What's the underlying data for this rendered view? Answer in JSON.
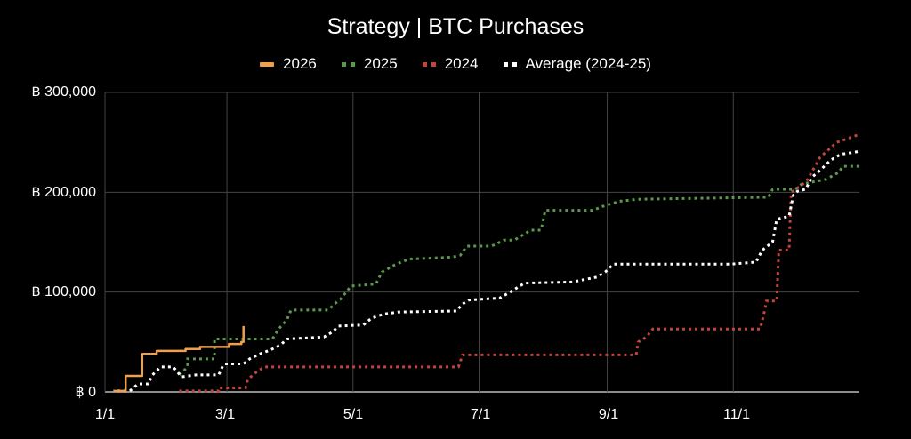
{
  "chart_data": {
    "type": "line",
    "title": "Strategy | BTC Purchases",
    "xlabel": "",
    "ylabel": "",
    "ylim": [
      0,
      300000
    ],
    "xlim_days": [
      0,
      365
    ],
    "grid": true,
    "legend_position": "top",
    "y_ticks": [
      {
        "value": 0,
        "label": "฿ 0"
      },
      {
        "value": 100000,
        "label": "฿ 100,000"
      },
      {
        "value": 200000,
        "label": "฿ 200,000"
      },
      {
        "value": 300000,
        "label": "฿ 300,000"
      }
    ],
    "x_ticks": [
      {
        "day": 0,
        "label": "1/1"
      },
      {
        "day": 59,
        "label": "3/1"
      },
      {
        "day": 120,
        "label": "5/1"
      },
      {
        "day": 181,
        "label": "7/1"
      },
      {
        "day": 243,
        "label": "9/1"
      },
      {
        "day": 304,
        "label": "11/1"
      }
    ],
    "series": [
      {
        "name": "2026",
        "color": "#f0a04b",
        "style": "solid",
        "points": [
          [
            4,
            1000
          ],
          [
            10,
            1000
          ],
          [
            10,
            16000
          ],
          [
            18,
            16000
          ],
          [
            18,
            38000
          ],
          [
            25,
            38000
          ],
          [
            25,
            41000
          ],
          [
            39,
            41000
          ],
          [
            39,
            43000
          ],
          [
            46,
            43000
          ],
          [
            46,
            45000
          ],
          [
            60,
            45000
          ],
          [
            60,
            48000
          ],
          [
            66,
            48000
          ],
          [
            66,
            50000
          ],
          [
            67,
            50000
          ],
          [
            67,
            66000
          ]
        ]
      },
      {
        "name": "2025",
        "color": "#5a9a4a",
        "style": "dotted",
        "points": [
          [
            36,
            17000
          ],
          [
            40,
            25000
          ],
          [
            40,
            33000
          ],
          [
            53,
            33000
          ],
          [
            53,
            53000
          ],
          [
            81,
            53000
          ],
          [
            84,
            63000
          ],
          [
            88,
            72000
          ],
          [
            90,
            82000
          ],
          [
            108,
            82000
          ],
          [
            111,
            88000
          ],
          [
            114,
            93000
          ],
          [
            119,
            106000
          ],
          [
            131,
            108000
          ],
          [
            134,
            120000
          ],
          [
            140,
            127000
          ],
          [
            147,
            133000
          ],
          [
            168,
            135000
          ],
          [
            172,
            137000
          ],
          [
            175,
            146000
          ],
          [
            187,
            146000
          ],
          [
            193,
            152000
          ],
          [
            198,
            152000
          ],
          [
            202,
            157000
          ],
          [
            206,
            162000
          ],
          [
            211,
            162000
          ],
          [
            213,
            182000
          ],
          [
            236,
            182000
          ],
          [
            241,
            186000
          ],
          [
            249,
            191000
          ],
          [
            258,
            193000
          ],
          [
            321,
            195000
          ],
          [
            323,
            203000
          ],
          [
            334,
            203000
          ],
          [
            337,
            208000
          ],
          [
            349,
            213000
          ],
          [
            355,
            220000
          ],
          [
            357,
            226000
          ],
          [
            365,
            226000
          ]
        ]
      },
      {
        "name": "2024",
        "color": "#c0453a",
        "style": "dotted",
        "points": [
          [
            36,
            1000
          ],
          [
            55,
            1000
          ],
          [
            55,
            4000
          ],
          [
            68,
            4000
          ],
          [
            69,
            12000
          ],
          [
            72,
            18000
          ],
          [
            77,
            25000
          ],
          [
            171,
            25000
          ],
          [
            173,
            37000
          ],
          [
            257,
            37000
          ],
          [
            258,
            50000
          ],
          [
            262,
            55000
          ],
          [
            265,
            63000
          ],
          [
            317,
            63000
          ],
          [
            319,
            80000
          ],
          [
            320,
            91000
          ],
          [
            325,
            91000
          ],
          [
            326,
            142000
          ],
          [
            331,
            142000
          ],
          [
            332,
            200000
          ],
          [
            337,
            207000
          ],
          [
            340,
            213000
          ],
          [
            346,
            235000
          ],
          [
            354,
            250000
          ],
          [
            361,
            255000
          ],
          [
            365,
            258000
          ]
        ]
      },
      {
        "name": "Average (2024-25)",
        "color": "#ffffff",
        "style": "dotted",
        "points": [
          [
            6,
            1000
          ],
          [
            12,
            1000
          ],
          [
            16,
            8000
          ],
          [
            21,
            8000
          ],
          [
            23,
            17000
          ],
          [
            27,
            25000
          ],
          [
            33,
            25000
          ],
          [
            37,
            15000
          ],
          [
            44,
            17000
          ],
          [
            55,
            17000
          ],
          [
            57,
            26000
          ],
          [
            58,
            28000
          ],
          [
            67,
            28000
          ],
          [
            70,
            33000
          ],
          [
            75,
            38000
          ],
          [
            80,
            42000
          ],
          [
            85,
            47000
          ],
          [
            88,
            53000
          ],
          [
            106,
            55000
          ],
          [
            110,
            60000
          ],
          [
            113,
            66000
          ],
          [
            125,
            67000
          ],
          [
            129,
            74000
          ],
          [
            135,
            78000
          ],
          [
            142,
            80000
          ],
          [
            170,
            81000
          ],
          [
            173,
            88000
          ],
          [
            176,
            92000
          ],
          [
            191,
            94000
          ],
          [
            196,
            100000
          ],
          [
            203,
            109000
          ],
          [
            226,
            110000
          ],
          [
            238,
            115000
          ],
          [
            242,
            120000
          ],
          [
            246,
            128000
          ],
          [
            303,
            128000
          ],
          [
            315,
            130000
          ],
          [
            318,
            142000
          ],
          [
            323,
            150000
          ],
          [
            325,
            173000
          ],
          [
            331,
            176000
          ],
          [
            333,
            197000
          ],
          [
            335,
            201000
          ],
          [
            339,
            203000
          ],
          [
            342,
            215000
          ],
          [
            346,
            222000
          ],
          [
            351,
            232000
          ],
          [
            356,
            238000
          ],
          [
            365,
            241000
          ]
        ]
      }
    ]
  },
  "legend": [
    {
      "label": "2026",
      "color": "#f0a04b",
      "style": "solid"
    },
    {
      "label": "2025",
      "color": "#5a9a4a",
      "style": "dotted"
    },
    {
      "label": "2024",
      "color": "#c0453a",
      "style": "dotted"
    },
    {
      "label": "Average (2024-25)",
      "color": "#ffffff",
      "style": "dotted"
    }
  ]
}
